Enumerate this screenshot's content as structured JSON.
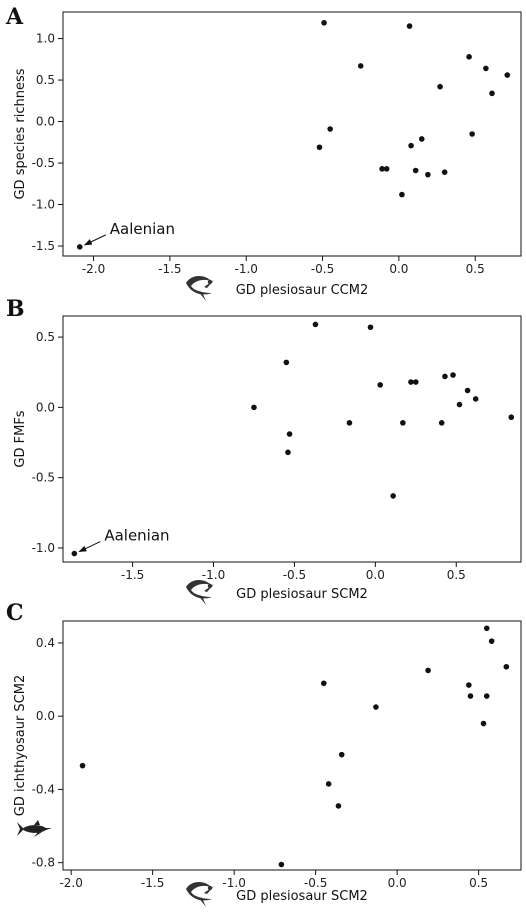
{
  "chart_data": [
    {
      "type": "scatter",
      "panel": "A",
      "xlabel": "GD plesiosaur CCM2",
      "ylabel": "GD species richness",
      "xlim": [
        -2.2,
        0.8
      ],
      "ylim": [
        -1.62,
        1.32
      ],
      "x_ticks": [
        -2.0,
        -1.5,
        -1.0,
        -0.5,
        0.0,
        0.5
      ],
      "x_tick_labels": [
        "-2.0",
        "-1.5",
        "-1.0",
        "-0.5",
        "0.0",
        "0.5"
      ],
      "y_ticks": [
        -1.5,
        -1.0,
        -0.5,
        0.0,
        0.5,
        1.0
      ],
      "y_tick_labels": [
        "-1.5",
        "-1.0",
        "-0.5",
        "0.0",
        "0.5",
        "1.0"
      ],
      "x_icon": "plesiosaur-icon",
      "annotation": {
        "text": "Aalenian",
        "x": -2.09,
        "y": -1.51
      },
      "points": [
        {
          "x": -2.09,
          "y": -1.51
        },
        {
          "x": -0.49,
          "y": 1.19
        },
        {
          "x": 0.07,
          "y": 1.15
        },
        {
          "x": -0.25,
          "y": 0.67
        },
        {
          "x": -0.45,
          "y": -0.09
        },
        {
          "x": -0.52,
          "y": -0.31
        },
        {
          "x": -0.11,
          "y": -0.57
        },
        {
          "x": -0.08,
          "y": -0.57
        },
        {
          "x": 0.02,
          "y": -0.88
        },
        {
          "x": 0.08,
          "y": -0.29
        },
        {
          "x": 0.11,
          "y": -0.59
        },
        {
          "x": 0.15,
          "y": -0.21
        },
        {
          "x": 0.19,
          "y": -0.64
        },
        {
          "x": 0.27,
          "y": 0.42
        },
        {
          "x": 0.3,
          "y": -0.61
        },
        {
          "x": 0.46,
          "y": 0.78
        },
        {
          "x": 0.48,
          "y": -0.15
        },
        {
          "x": 0.57,
          "y": 0.64
        },
        {
          "x": 0.61,
          "y": 0.34
        },
        {
          "x": 0.71,
          "y": 0.56
        }
      ]
    },
    {
      "type": "scatter",
      "panel": "B",
      "xlabel": "GD plesiosaur SCM2",
      "ylabel": "GD FMFs",
      "xlim": [
        -1.93,
        0.9
      ],
      "ylim": [
        -1.1,
        0.65
      ],
      "x_ticks": [
        -1.5,
        -1.0,
        -0.5,
        0.0,
        0.5
      ],
      "x_tick_labels": [
        "-1.5",
        "-1.0",
        "-0.5",
        "0.0",
        "0.5"
      ],
      "y_ticks": [
        -1.0,
        -0.5,
        0.0,
        0.5
      ],
      "y_tick_labels": [
        "-1.0",
        "-0.5",
        "0.0",
        "0.5"
      ],
      "x_icon": "plesiosaur-icon",
      "annotation": {
        "text": "Aalenian",
        "x": -1.86,
        "y": -1.04
      },
      "points": [
        {
          "x": -1.86,
          "y": -1.04
        },
        {
          "x": -0.75,
          "y": 0.0
        },
        {
          "x": -0.55,
          "y": 0.32
        },
        {
          "x": -0.53,
          "y": -0.19
        },
        {
          "x": -0.54,
          "y": -0.32
        },
        {
          "x": -0.37,
          "y": 0.59
        },
        {
          "x": -0.16,
          "y": -0.11
        },
        {
          "x": -0.03,
          "y": 0.57
        },
        {
          "x": 0.03,
          "y": 0.16
        },
        {
          "x": 0.11,
          "y": -0.63
        },
        {
          "x": 0.17,
          "y": -0.11
        },
        {
          "x": 0.22,
          "y": 0.18
        },
        {
          "x": 0.25,
          "y": 0.18
        },
        {
          "x": 0.41,
          "y": -0.11
        },
        {
          "x": 0.43,
          "y": 0.22
        },
        {
          "x": 0.48,
          "y": 0.23
        },
        {
          "x": 0.52,
          "y": 0.02
        },
        {
          "x": 0.57,
          "y": 0.12
        },
        {
          "x": 0.62,
          "y": 0.06
        },
        {
          "x": 0.84,
          "y": -0.07
        }
      ]
    },
    {
      "type": "scatter",
      "panel": "C",
      "xlabel": "GD plesiosaur SCM2",
      "ylabel": "GD ichthyosaur SCM2",
      "xlim": [
        -2.05,
        0.76
      ],
      "ylim": [
        -0.84,
        0.52
      ],
      "x_ticks": [
        -2.0,
        -1.5,
        -1.0,
        -0.5,
        0.0,
        0.5
      ],
      "x_tick_labels": [
        "-2.0",
        "-1.5",
        "-1.0",
        "-0.5",
        "0.0",
        "0.5"
      ],
      "y_ticks": [
        -0.8,
        -0.4,
        0.0,
        0.4
      ],
      "y_tick_labels": [
        "-0.8",
        "-0.4",
        "0.0",
        "0.4"
      ],
      "x_icon": "plesiosaur-icon",
      "y_icon": "ichthyosaur-icon",
      "points": [
        {
          "x": -1.93,
          "y": -0.27
        },
        {
          "x": -0.45,
          "y": 0.18
        },
        {
          "x": -0.42,
          "y": -0.37
        },
        {
          "x": -0.36,
          "y": -0.49
        },
        {
          "x": -0.34,
          "y": -0.21
        },
        {
          "x": -0.13,
          "y": 0.05
        },
        {
          "x": -0.71,
          "y": -0.81
        },
        {
          "x": 0.19,
          "y": 0.25
        },
        {
          "x": 0.44,
          "y": 0.17
        },
        {
          "x": 0.45,
          "y": 0.11
        },
        {
          "x": 0.53,
          "y": -0.04
        },
        {
          "x": 0.55,
          "y": 0.11
        },
        {
          "x": 0.55,
          "y": 0.48
        },
        {
          "x": 0.58,
          "y": 0.41
        },
        {
          "x": 0.67,
          "y": 0.27
        }
      ]
    }
  ]
}
